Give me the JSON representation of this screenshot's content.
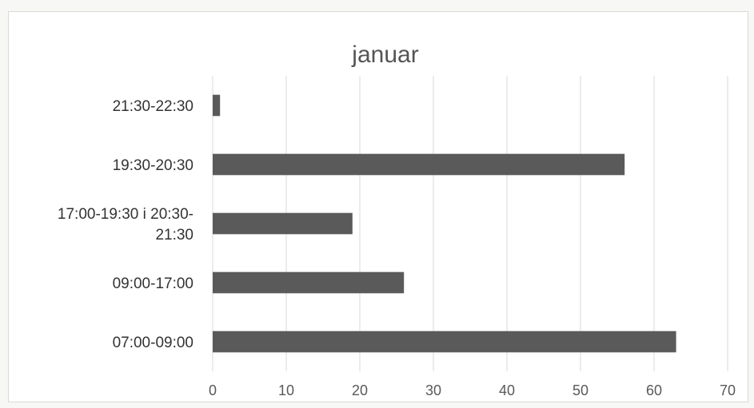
{
  "chart_data": {
    "type": "bar",
    "orientation": "horizontal",
    "title": "januar",
    "xlabel": "",
    "ylabel": "",
    "categories": [
      "07:00-09:00",
      "09:00-17:00",
      "17:00-19:30 i 20:30-21:30",
      "19:30-20:30",
      "21:30-22:30"
    ],
    "category_label_lines": [
      [
        "07:00-09:00"
      ],
      [
        "09:00-17:00"
      ],
      [
        "17:00-19:30 i 20:30-",
        "21:30"
      ],
      [
        "19:30-20:30"
      ],
      [
        "21:30-22:30"
      ]
    ],
    "values": [
      63,
      26,
      19,
      56,
      1
    ],
    "xlim": [
      0,
      70
    ],
    "xticks": [
      "0",
      "10",
      "20",
      "30",
      "40",
      "50",
      "60",
      "70"
    ],
    "grid": true,
    "legend": "none",
    "bar_color": "#5a5a5a"
  }
}
